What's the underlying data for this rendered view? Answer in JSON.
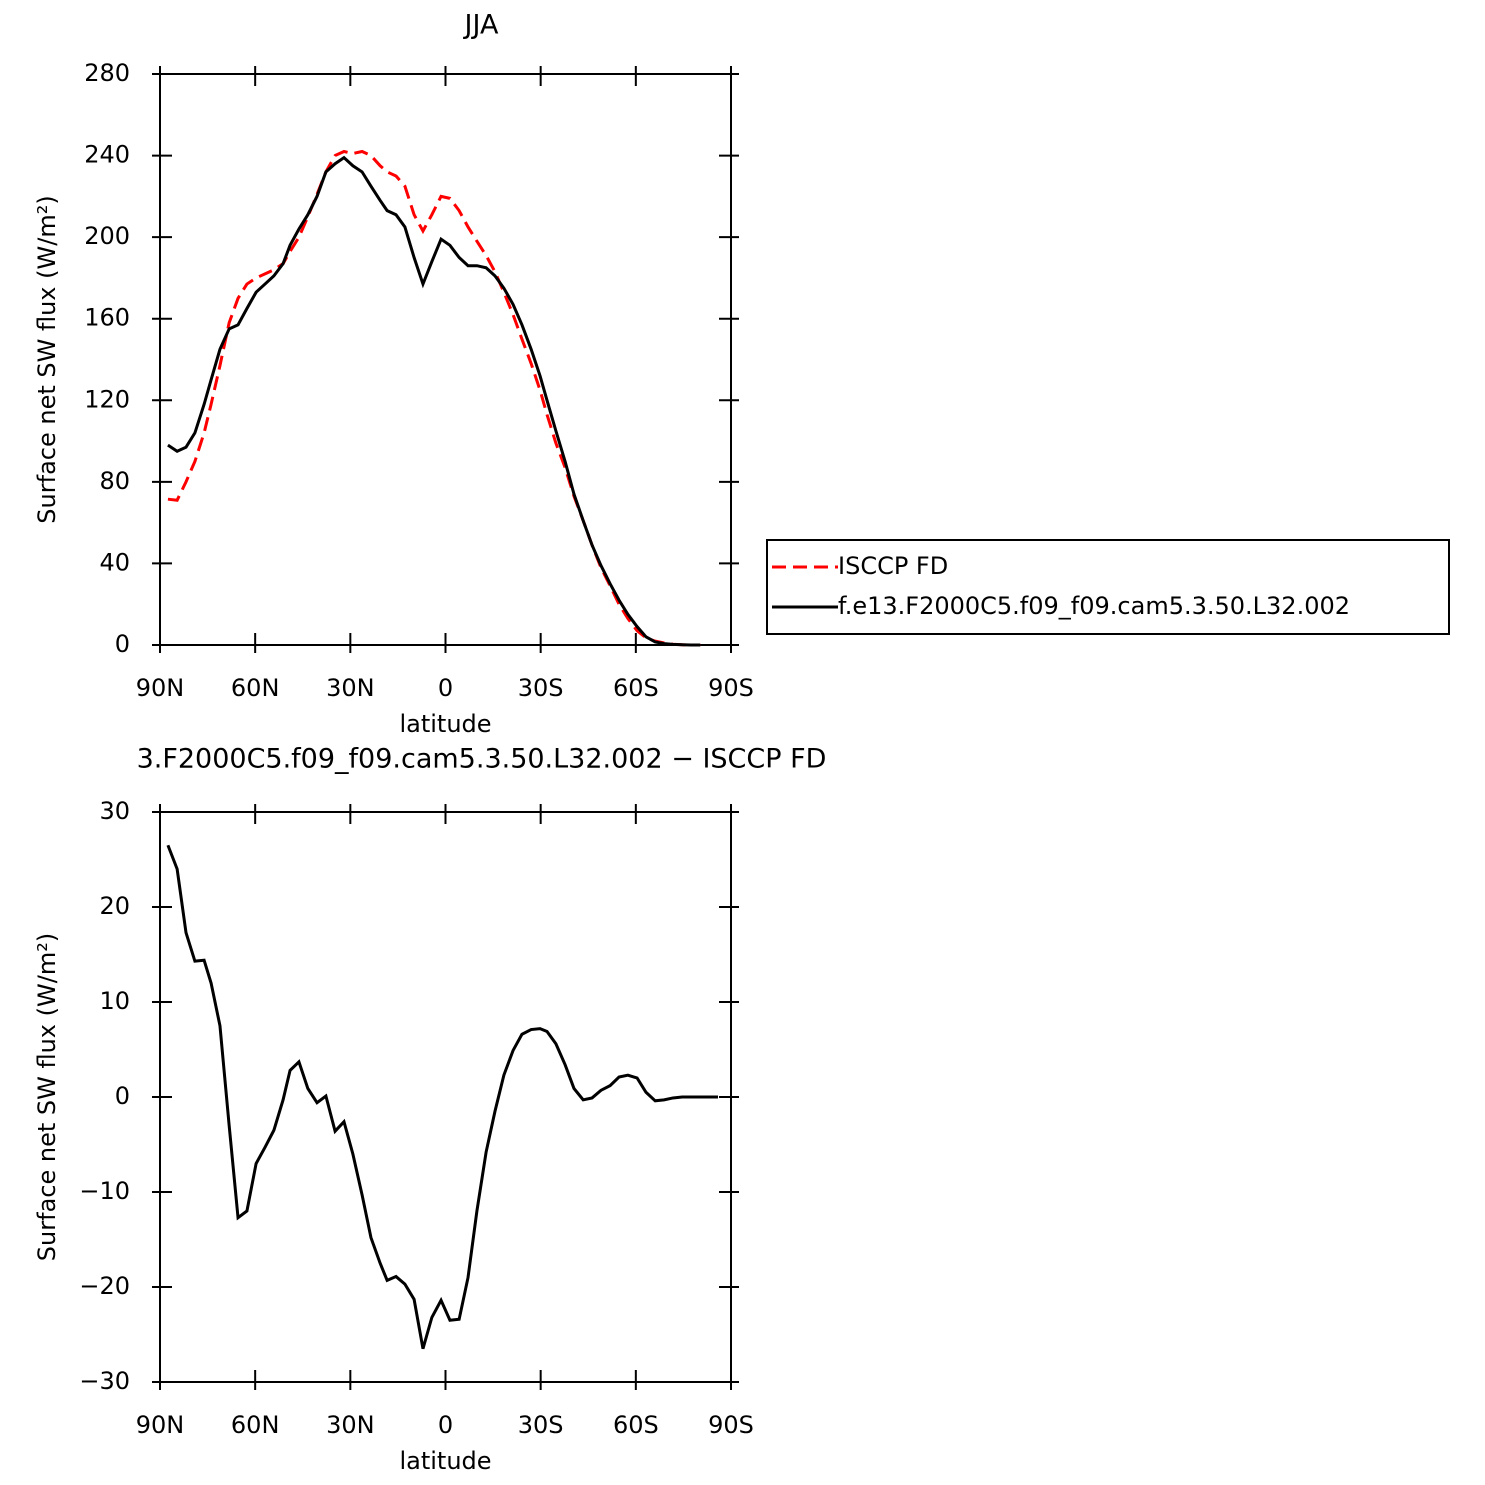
{
  "chart_data": [
    {
      "type": "line",
      "title": "JJA",
      "xlabel": "latitude",
      "ylabel": "Surface net SW flux (W/m²)",
      "x": [
        87.5,
        84.6,
        81.8,
        79,
        76.1,
        73.9,
        71.1,
        68.2,
        65.4,
        62.6,
        59.7,
        56.9,
        54.1,
        51.2,
        49,
        46.2,
        43.4,
        40.5,
        37.7,
        34.8,
        32,
        29.2,
        26.3,
        23.5,
        20.6,
        18.4,
        15.6,
        12.8,
        9.9,
        7.1,
        4.3,
        1.4,
        -1.4,
        -4.3,
        -7.1,
        -9.9,
        -12.8,
        -15.6,
        -18.4,
        -21.3,
        -24.1,
        -27,
        -29.8,
        -32,
        -34.8,
        -37.7,
        -40.5,
        -43.4,
        -46.2,
        -49,
        -51.9,
        -54.7,
        -57.5,
        -60.4,
        -63.2,
        -66.1,
        -68.9,
        -71.7,
        -74.6,
        -77.4,
        -80.3,
        -83.1,
        -85.9
      ],
      "series": [
        {
          "name": "ISCCP FD",
          "color": "#ff0000",
          "dash": "dashed",
          "values": [
            71.5,
            71,
            80,
            90,
            104,
            118,
            137,
            158,
            170,
            177,
            180,
            182,
            184,
            187,
            193,
            200,
            210,
            221,
            232,
            240,
            242,
            241,
            242,
            240,
            235,
            232,
            230,
            225,
            211,
            203,
            211,
            220,
            219,
            213,
            205,
            198,
            191,
            183,
            173,
            162,
            150,
            138,
            125,
            113,
            99,
            87,
            73,
            61,
            49,
            38,
            29,
            20,
            13,
            7,
            3.5,
            1.9,
            1,
            0.4,
            0.1,
            0,
            0,
            null,
            null
          ]
        },
        {
          "name": "f.e13.F2000C5.f09_f09.cam5.3.50.L32.002",
          "color": "#000000",
          "dash": "solid",
          "values": [
            98,
            95,
            97,
            104,
            118,
            130,
            145,
            155,
            157,
            165,
            173,
            177,
            181,
            187,
            196,
            204,
            211,
            220,
            232,
            236,
            239,
            235,
            232,
            225,
            218,
            213,
            211,
            205,
            190,
            177,
            188,
            199,
            196,
            190,
            186,
            186,
            185,
            181,
            175,
            167,
            157,
            145,
            132,
            120,
            105,
            90,
            74,
            61,
            49,
            39,
            30,
            22,
            15,
            9,
            4,
            1.5,
            0.7,
            0.3,
            0.1,
            0,
            0,
            null,
            null
          ]
        }
      ],
      "xlim": [
        90,
        -90
      ],
      "xticks": [
        {
          "value": 90,
          "label": "90N"
        },
        {
          "value": 60,
          "label": "60N"
        },
        {
          "value": 30,
          "label": "30N"
        },
        0,
        {
          "value": -30,
          "label": "30S"
        },
        {
          "value": -60,
          "label": "60S"
        },
        {
          "value": -90,
          "label": "90S"
        }
      ],
      "ylim": [
        0,
        280
      ],
      "yticks": [
        0,
        40,
        80,
        120,
        160,
        200,
        240,
        280
      ],
      "legend": "right"
    },
    {
      "type": "line",
      "title": "3.F2000C5.f09_f09.cam5.3.50.L32.002 − ISCCP FD",
      "xlabel": "latitude",
      "ylabel": "Surface net SW flux (W/m²)",
      "x": [
        87.5,
        84.6,
        81.8,
        79,
        76.1,
        73.9,
        71.1,
        68.2,
        65.4,
        62.6,
        59.7,
        56.9,
        54.1,
        51.2,
        49,
        46.2,
        43.4,
        40.5,
        37.7,
        34.8,
        32,
        29.2,
        26.3,
        23.5,
        20.6,
        18.4,
        15.6,
        12.8,
        9.9,
        7.1,
        4.3,
        1.4,
        -1.4,
        -4.3,
        -7.1,
        -9.9,
        -12.8,
        -15.6,
        -18.4,
        -21.3,
        -24.1,
        -27,
        -29.8,
        -32,
        -34.8,
        -37.7,
        -40.5,
        -43.4,
        -46.2,
        -49,
        -51.9,
        -54.7,
        -57.5,
        -60.4,
        -63.2,
        -66.1,
        -68.9,
        -71.7,
        -74.6,
        -77.4,
        -80.3,
        -83.1,
        -85.9
      ],
      "series": [
        {
          "color": "#000000",
          "dash": "solid",
          "values": [
            26.5,
            24,
            17.3,
            14.3,
            14.4,
            12,
            7.5,
            -3,
            -12.7,
            -12,
            -7,
            -5.3,
            -3.5,
            -0.3,
            2.8,
            3.7,
            0.9,
            -0.6,
            0.1,
            -3.6,
            -2.6,
            -6,
            -10.3,
            -14.8,
            -17.5,
            -19.3,
            -18.9,
            -19.7,
            -21.3,
            -26.5,
            -23.2,
            -21.4,
            -23.5,
            -23.4,
            -19,
            -12,
            -5.8,
            -1.5,
            2.3,
            4.9,
            6.6,
            7.1,
            7.2,
            6.9,
            5.6,
            3.4,
            0.9,
            -0.3,
            -0.1,
            0.7,
            1.2,
            2.1,
            2.3,
            2,
            0.5,
            -0.4,
            -0.3,
            -0.1,
            0,
            0,
            0,
            0,
            0
          ]
        }
      ],
      "xlim": [
        90,
        -90
      ],
      "xticks": [
        {
          "value": 90,
          "label": "90N"
        },
        {
          "value": 60,
          "label": "60N"
        },
        {
          "value": 30,
          "label": "30N"
        },
        0,
        {
          "value": -30,
          "label": "30S"
        },
        {
          "value": -60,
          "label": "60S"
        },
        {
          "value": -90,
          "label": "90S"
        }
      ],
      "ylim": [
        -30,
        30
      ],
      "yticks": [
        {
          "value": -30,
          "label": "−30"
        },
        {
          "value": -20,
          "label": "−20"
        },
        {
          "value": -10,
          "label": "−10"
        },
        0,
        10,
        20,
        30
      ]
    }
  ]
}
